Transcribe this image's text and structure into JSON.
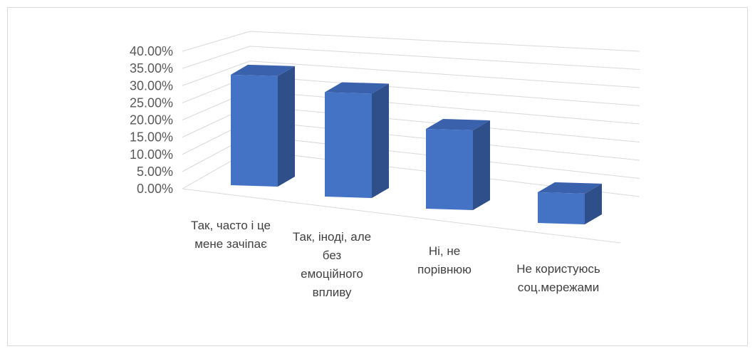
{
  "chart_data": {
    "type": "bar",
    "style": "3d-column",
    "title": "",
    "xlabel": "",
    "ylabel": "",
    "ylim": [
      0,
      0.4
    ],
    "y_ticks": [
      "0.00%",
      "5.00%",
      "10.00%",
      "15.00%",
      "20.00%",
      "25.00%",
      "30.00%",
      "35.00%",
      "40.00%"
    ],
    "grid": true,
    "legend": "none",
    "categories": [
      "Так, часто і це мене зачіпає",
      "Так, іноді, але без емоційного впливу",
      "Ні, не порівнюю",
      "Не користуюсь соц.мережами"
    ],
    "category_lines": [
      [
        "Так, часто і це",
        "мене зачіпає"
      ],
      [
        "Так, іноді, але",
        "без",
        "емоційного",
        "впливу"
      ],
      [
        "Ні, не",
        "порівнюю"
      ],
      [
        "Не користуюсь",
        "соц.мережами"
      ]
    ],
    "values": [
      0.36,
      0.34,
      0.26,
      0.1
    ],
    "colors": {
      "bar_front": "#4472C4",
      "bar_side": "#2F4F8A",
      "bar_top": "#3A62AC",
      "grid": "#d9d9d9"
    }
  }
}
